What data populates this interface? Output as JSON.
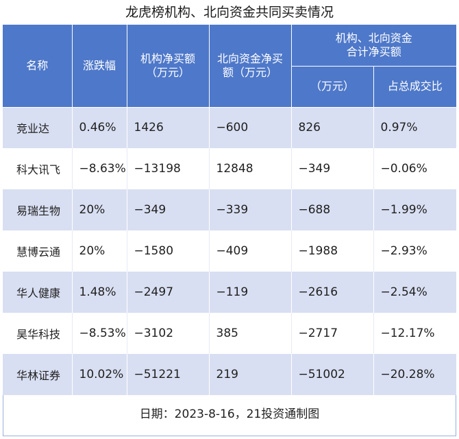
{
  "title": "龙虎榜机构、北向资金共同买卖情况",
  "headers": {
    "name": "名称",
    "change": "涨跌幅",
    "inst_net": [
      "机构净买额",
      "（万元）"
    ],
    "north_net": [
      "北向资金净买",
      "额（万元）"
    ],
    "group": [
      "机构、北向资金",
      "合计净买额"
    ],
    "combined": "（万元）",
    "ratio": "占总成交比"
  },
  "chart_data": {
    "type": "table",
    "title": "龙虎榜机构、北向资金共同买卖情况",
    "columns": [
      "名称",
      "涨跌幅",
      "机构净买额（万元）",
      "北向资金净买额（万元）",
      "机构、北向资金合计净买额（万元）",
      "机构、北向资金合计净买额占总成交比"
    ],
    "rows": [
      [
        "竞业达",
        "0.46%",
        "1426",
        "−600",
        "826",
        "0.97%"
      ],
      [
        "科大讯飞",
        "−8.63%",
        "−13198",
        "12848",
        "−349",
        "−0.06%"
      ],
      [
        "易瑞生物",
        "20%",
        "−349",
        "−339",
        "−688",
        "−1.99%"
      ],
      [
        "慧博云通",
        "20%",
        "−1580",
        "−409",
        "−1988",
        "−2.93%"
      ],
      [
        "华人健康",
        "1.48%",
        "−2497",
        "−119",
        "−2616",
        "−2.54%"
      ],
      [
        "昊华科技",
        "−8.53%",
        "−3102",
        "385",
        "−2717",
        "−12.17%"
      ],
      [
        "华林证券",
        "10.02%",
        "−51221",
        "219",
        "−51002",
        "−20.28%"
      ]
    ]
  },
  "footer": "日期：2023-8-16，21投资通制图",
  "colors": {
    "header_bg": "#4e78c9",
    "band_bg": "#d9dff2",
    "row_bg": "#ffffff"
  }
}
